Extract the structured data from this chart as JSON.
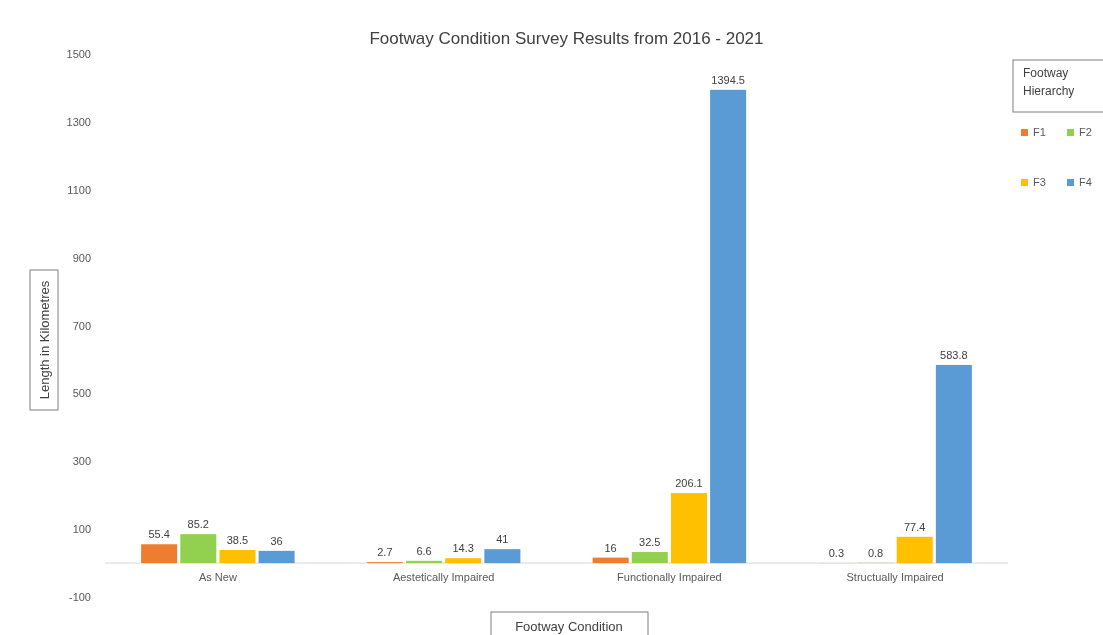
{
  "chart_data": {
    "type": "bar",
    "title": "Footway Condition Survey Results from 2016 - 2021",
    "xlabel": "Footway Condition",
    "ylabel": "Length in Kilometres",
    "legend_title": "Footway Hierarchy",
    "categories": [
      "As New",
      "Aestetically Impaired",
      "Functionally Impaired",
      "Structually Impaired"
    ],
    "series": [
      {
        "name": "F1",
        "color": "#ed7d31",
        "values": [
          55.4,
          2.7,
          16,
          0.3
        ]
      },
      {
        "name": "F2",
        "color": "#92d050",
        "values": [
          85.2,
          6.6,
          32.5,
          0.8
        ]
      },
      {
        "name": "F3",
        "color": "#ffc000",
        "values": [
          38.5,
          14.3,
          206.1,
          77.4
        ]
      },
      {
        "name": "F4",
        "color": "#5b9bd5",
        "values": [
          36,
          41,
          1394.5,
          583.8
        ]
      }
    ],
    "ylim": [
      -100,
      1500
    ],
    "yticks": [
      -100,
      100,
      300,
      500,
      700,
      900,
      1100,
      1300,
      1500
    ],
    "data_labels": true,
    "legend": "right"
  }
}
